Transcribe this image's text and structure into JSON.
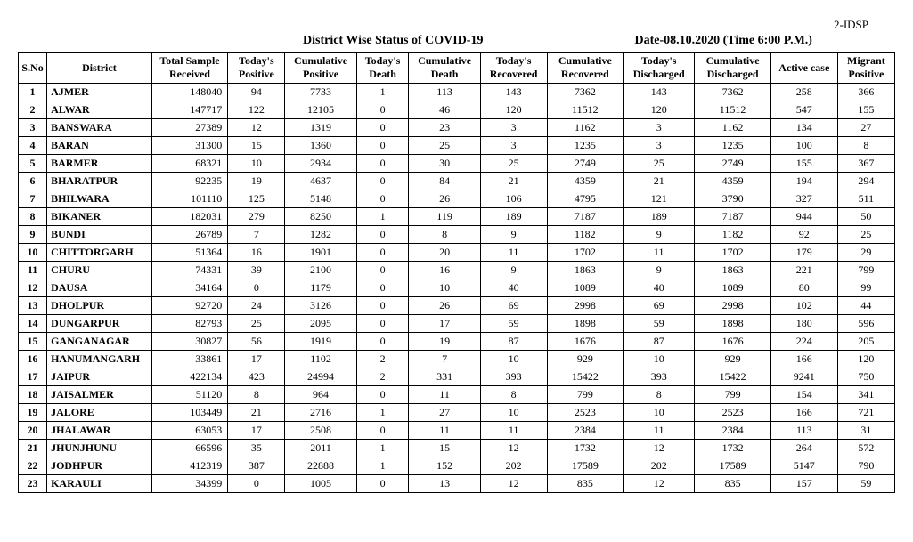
{
  "top_right_code": "2-IDSP",
  "title": "District Wise Status of  COVID-19",
  "date_line": "Date-08.10.2020 (Time 6:00 P.M.)",
  "columns": [
    "S.No",
    "District",
    "Total Sample Received",
    "Today's Positive",
    "Cumulative Positive",
    "Today's Death",
    "Cumulative Death",
    "Today's Recovered",
    "Cumulative Recovered",
    "Today's Discharged",
    "Cumulative Discharged",
    "Active case",
    "Migrant Positive"
  ],
  "rows": [
    {
      "sn": 1,
      "district": "AJMER",
      "sample": "148040",
      "tp": "94",
      "cp": "7733",
      "td": "1",
      "cd": "113",
      "tr": "143",
      "cr": "7362",
      "tds": "143",
      "cds": "7362",
      "ac": "258",
      "mp": "366"
    },
    {
      "sn": 2,
      "district": "ALWAR",
      "sample": "147717",
      "tp": "122",
      "cp": "12105",
      "td": "0",
      "cd": "46",
      "tr": "120",
      "cr": "11512",
      "tds": "120",
      "cds": "11512",
      "ac": "547",
      "mp": "155"
    },
    {
      "sn": 3,
      "district": "BANSWARA",
      "sample": "27389",
      "tp": "12",
      "cp": "1319",
      "td": "0",
      "cd": "23",
      "tr": "3",
      "cr": "1162",
      "tds": "3",
      "cds": "1162",
      "ac": "134",
      "mp": "27"
    },
    {
      "sn": 4,
      "district": "BARAN",
      "sample": "31300",
      "tp": "15",
      "cp": "1360",
      "td": "0",
      "cd": "25",
      "tr": "3",
      "cr": "1235",
      "tds": "3",
      "cds": "1235",
      "ac": "100",
      "mp": "8"
    },
    {
      "sn": 5,
      "district": "BARMER",
      "sample": "68321",
      "tp": "10",
      "cp": "2934",
      "td": "0",
      "cd": "30",
      "tr": "25",
      "cr": "2749",
      "tds": "25",
      "cds": "2749",
      "ac": "155",
      "mp": "367"
    },
    {
      "sn": 6,
      "district": "BHARATPUR",
      "sample": "92235",
      "tp": "19",
      "cp": "4637",
      "td": "0",
      "cd": "84",
      "tr": "21",
      "cr": "4359",
      "tds": "21",
      "cds": "4359",
      "ac": "194",
      "mp": "294"
    },
    {
      "sn": 7,
      "district": "BHILWARA",
      "sample": "101110",
      "tp": "125",
      "cp": "5148",
      "td": "0",
      "cd": "26",
      "tr": "106",
      "cr": "4795",
      "tds": "121",
      "cds": "3790",
      "ac": "327",
      "mp": "511"
    },
    {
      "sn": 8,
      "district": "BIKANER",
      "sample": "182031",
      "tp": "279",
      "cp": "8250",
      "td": "1",
      "cd": "119",
      "tr": "189",
      "cr": "7187",
      "tds": "189",
      "cds": "7187",
      "ac": "944",
      "mp": "50"
    },
    {
      "sn": 9,
      "district": "BUNDI",
      "sample": "26789",
      "tp": "7",
      "cp": "1282",
      "td": "0",
      "cd": "8",
      "tr": "9",
      "cr": "1182",
      "tds": "9",
      "cds": "1182",
      "ac": "92",
      "mp": "25"
    },
    {
      "sn": 10,
      "district": "CHITTORGARH",
      "sample": "51364",
      "tp": "16",
      "cp": "1901",
      "td": "0",
      "cd": "20",
      "tr": "11",
      "cr": "1702",
      "tds": "11",
      "cds": "1702",
      "ac": "179",
      "mp": "29"
    },
    {
      "sn": 11,
      "district": "CHURU",
      "sample": "74331",
      "tp": "39",
      "cp": "2100",
      "td": "0",
      "cd": "16",
      "tr": "9",
      "cr": "1863",
      "tds": "9",
      "cds": "1863",
      "ac": "221",
      "mp": "799"
    },
    {
      "sn": 12,
      "district": "DAUSA",
      "sample": "34164",
      "tp": "0",
      "cp": "1179",
      "td": "0",
      "cd": "10",
      "tr": "40",
      "cr": "1089",
      "tds": "40",
      "cds": "1089",
      "ac": "80",
      "mp": "99"
    },
    {
      "sn": 13,
      "district": "DHOLPUR",
      "sample": "92720",
      "tp": "24",
      "cp": "3126",
      "td": "0",
      "cd": "26",
      "tr": "69",
      "cr": "2998",
      "tds": "69",
      "cds": "2998",
      "ac": "102",
      "mp": "44"
    },
    {
      "sn": 14,
      "district": "DUNGARPUR",
      "sample": "82793",
      "tp": "25",
      "cp": "2095",
      "td": "0",
      "cd": "17",
      "tr": "59",
      "cr": "1898",
      "tds": "59",
      "cds": "1898",
      "ac": "180",
      "mp": "596"
    },
    {
      "sn": 15,
      "district": "GANGANAGAR",
      "sample": "30827",
      "tp": "56",
      "cp": "1919",
      "td": "0",
      "cd": "19",
      "tr": "87",
      "cr": "1676",
      "tds": "87",
      "cds": "1676",
      "ac": "224",
      "mp": "205"
    },
    {
      "sn": 16,
      "district": "HANUMANGARH",
      "sample": "33861",
      "tp": "17",
      "cp": "1102",
      "td": "2",
      "cd": "7",
      "tr": "10",
      "cr": "929",
      "tds": "10",
      "cds": "929",
      "ac": "166",
      "mp": "120"
    },
    {
      "sn": 17,
      "district": "JAIPUR",
      "sample": "422134",
      "tp": "423",
      "cp": "24994",
      "td": "2",
      "cd": "331",
      "tr": "393",
      "cr": "15422",
      "tds": "393",
      "cds": "15422",
      "ac": "9241",
      "mp": "750"
    },
    {
      "sn": 18,
      "district": "JAISALMER",
      "sample": "51120",
      "tp": "8",
      "cp": "964",
      "td": "0",
      "cd": "11",
      "tr": "8",
      "cr": "799",
      "tds": "8",
      "cds": "799",
      "ac": "154",
      "mp": "341"
    },
    {
      "sn": 19,
      "district": "JALORE",
      "sample": "103449",
      "tp": "21",
      "cp": "2716",
      "td": "1",
      "cd": "27",
      "tr": "10",
      "cr": "2523",
      "tds": "10",
      "cds": "2523",
      "ac": "166",
      "mp": "721"
    },
    {
      "sn": 20,
      "district": "JHALAWAR",
      "sample": "63053",
      "tp": "17",
      "cp": "2508",
      "td": "0",
      "cd": "11",
      "tr": "11",
      "cr": "2384",
      "tds": "11",
      "cds": "2384",
      "ac": "113",
      "mp": "31"
    },
    {
      "sn": 21,
      "district": "JHUNJHUNU",
      "sample": "66596",
      "tp": "35",
      "cp": "2011",
      "td": "1",
      "cd": "15",
      "tr": "12",
      "cr": "1732",
      "tds": "12",
      "cds": "1732",
      "ac": "264",
      "mp": "572"
    },
    {
      "sn": 22,
      "district": "JODHPUR",
      "sample": "412319",
      "tp": "387",
      "cp": "22888",
      "td": "1",
      "cd": "152",
      "tr": "202",
      "cr": "17589",
      "tds": "202",
      "cds": "17589",
      "ac": "5147",
      "mp": "790"
    },
    {
      "sn": 23,
      "district": "KARAULI",
      "sample": "34399",
      "tp": "0",
      "cp": "1005",
      "td": "0",
      "cd": "13",
      "tr": "12",
      "cr": "835",
      "tds": "12",
      "cds": "835",
      "ac": "157",
      "mp": "59"
    }
  ]
}
